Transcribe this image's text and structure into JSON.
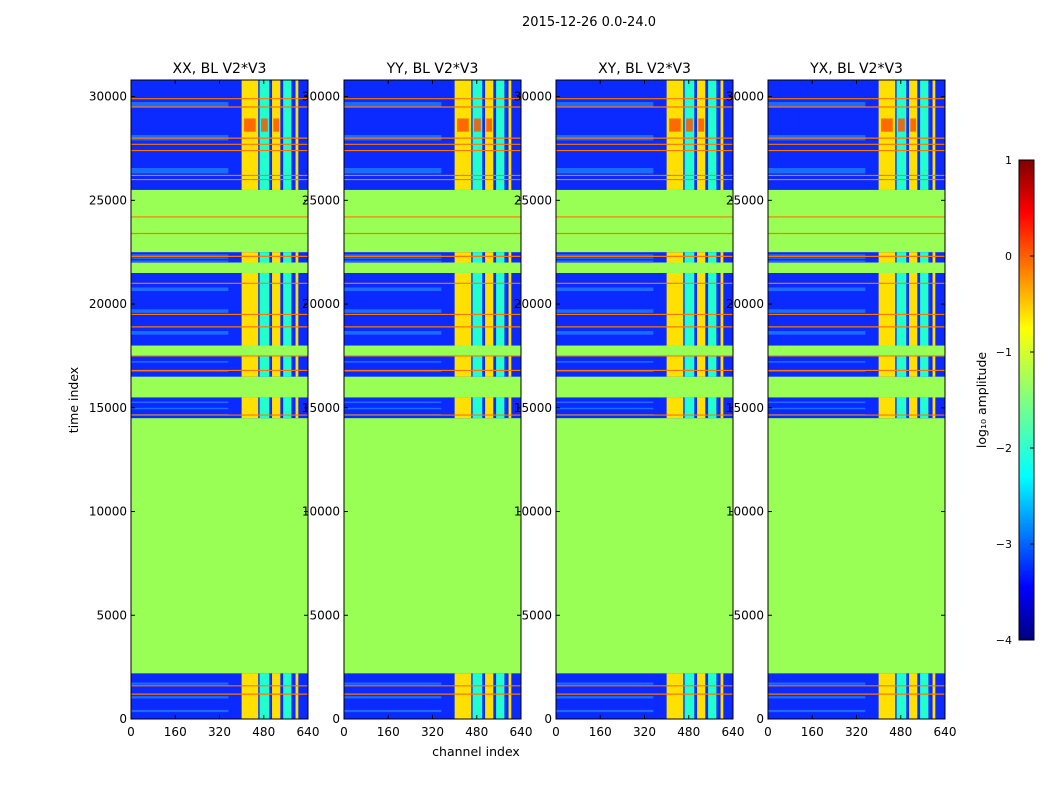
{
  "figure": {
    "suptitle": "2015-12-26 0.0-24.0",
    "xlabel": "channel index",
    "ylabel": "time index",
    "colorbar_label": "log₁₀ amplitude"
  },
  "chart_data": {
    "type": "heatmap",
    "title": "2015-12-26 0.0-24.0",
    "xlabel": "channel index",
    "ylabel": "time index",
    "xlim": [
      0,
      640
    ],
    "ylim": [
      0,
      30800
    ],
    "xticks": [
      0,
      160,
      320,
      480,
      640
    ],
    "yticks": [
      0,
      5000,
      10000,
      15000,
      20000,
      25000,
      30000
    ],
    "panels": [
      {
        "title": "XX, BL V2*V3",
        "polarization": "XX",
        "baseline": "V2*V3"
      },
      {
        "title": "YY, BL V2*V3",
        "polarization": "YY",
        "baseline": "V2*V3"
      },
      {
        "title": "XY, BL V2*V3",
        "polarization": "XY",
        "baseline": "V2*V3"
      },
      {
        "title": "YX, BL V2*V3",
        "polarization": "YX",
        "baseline": "V2*V3"
      }
    ],
    "colorbar": {
      "label": "log10 amplitude",
      "range": [
        -4,
        1
      ],
      "ticks": [
        1,
        0,
        -1,
        -2,
        -3,
        -4
      ],
      "tick_labels": [
        "1",
        "0",
        "−1",
        "−2",
        "−3",
        "−4"
      ],
      "colormap": "jet"
    },
    "flagged_time_range": [
      2200,
      14500
    ],
    "flagged_value": -1.4,
    "data_time_blocks": [
      [
        0,
        2200
      ],
      [
        14500,
        15500
      ],
      [
        16500,
        18000
      ],
      [
        18000,
        21500
      ],
      [
        22000,
        22500
      ],
      [
        25500,
        30800
      ]
    ],
    "rfi_channel_bands": [
      [
        400,
        460
      ],
      [
        465,
        500
      ],
      [
        510,
        540
      ],
      [
        550,
        580
      ],
      [
        595,
        605
      ]
    ]
  },
  "colors": {
    "flagged": "#99ff55",
    "background": "#0a2aff",
    "rfi_hot": "#ff5500",
    "axes": "#000000"
  }
}
